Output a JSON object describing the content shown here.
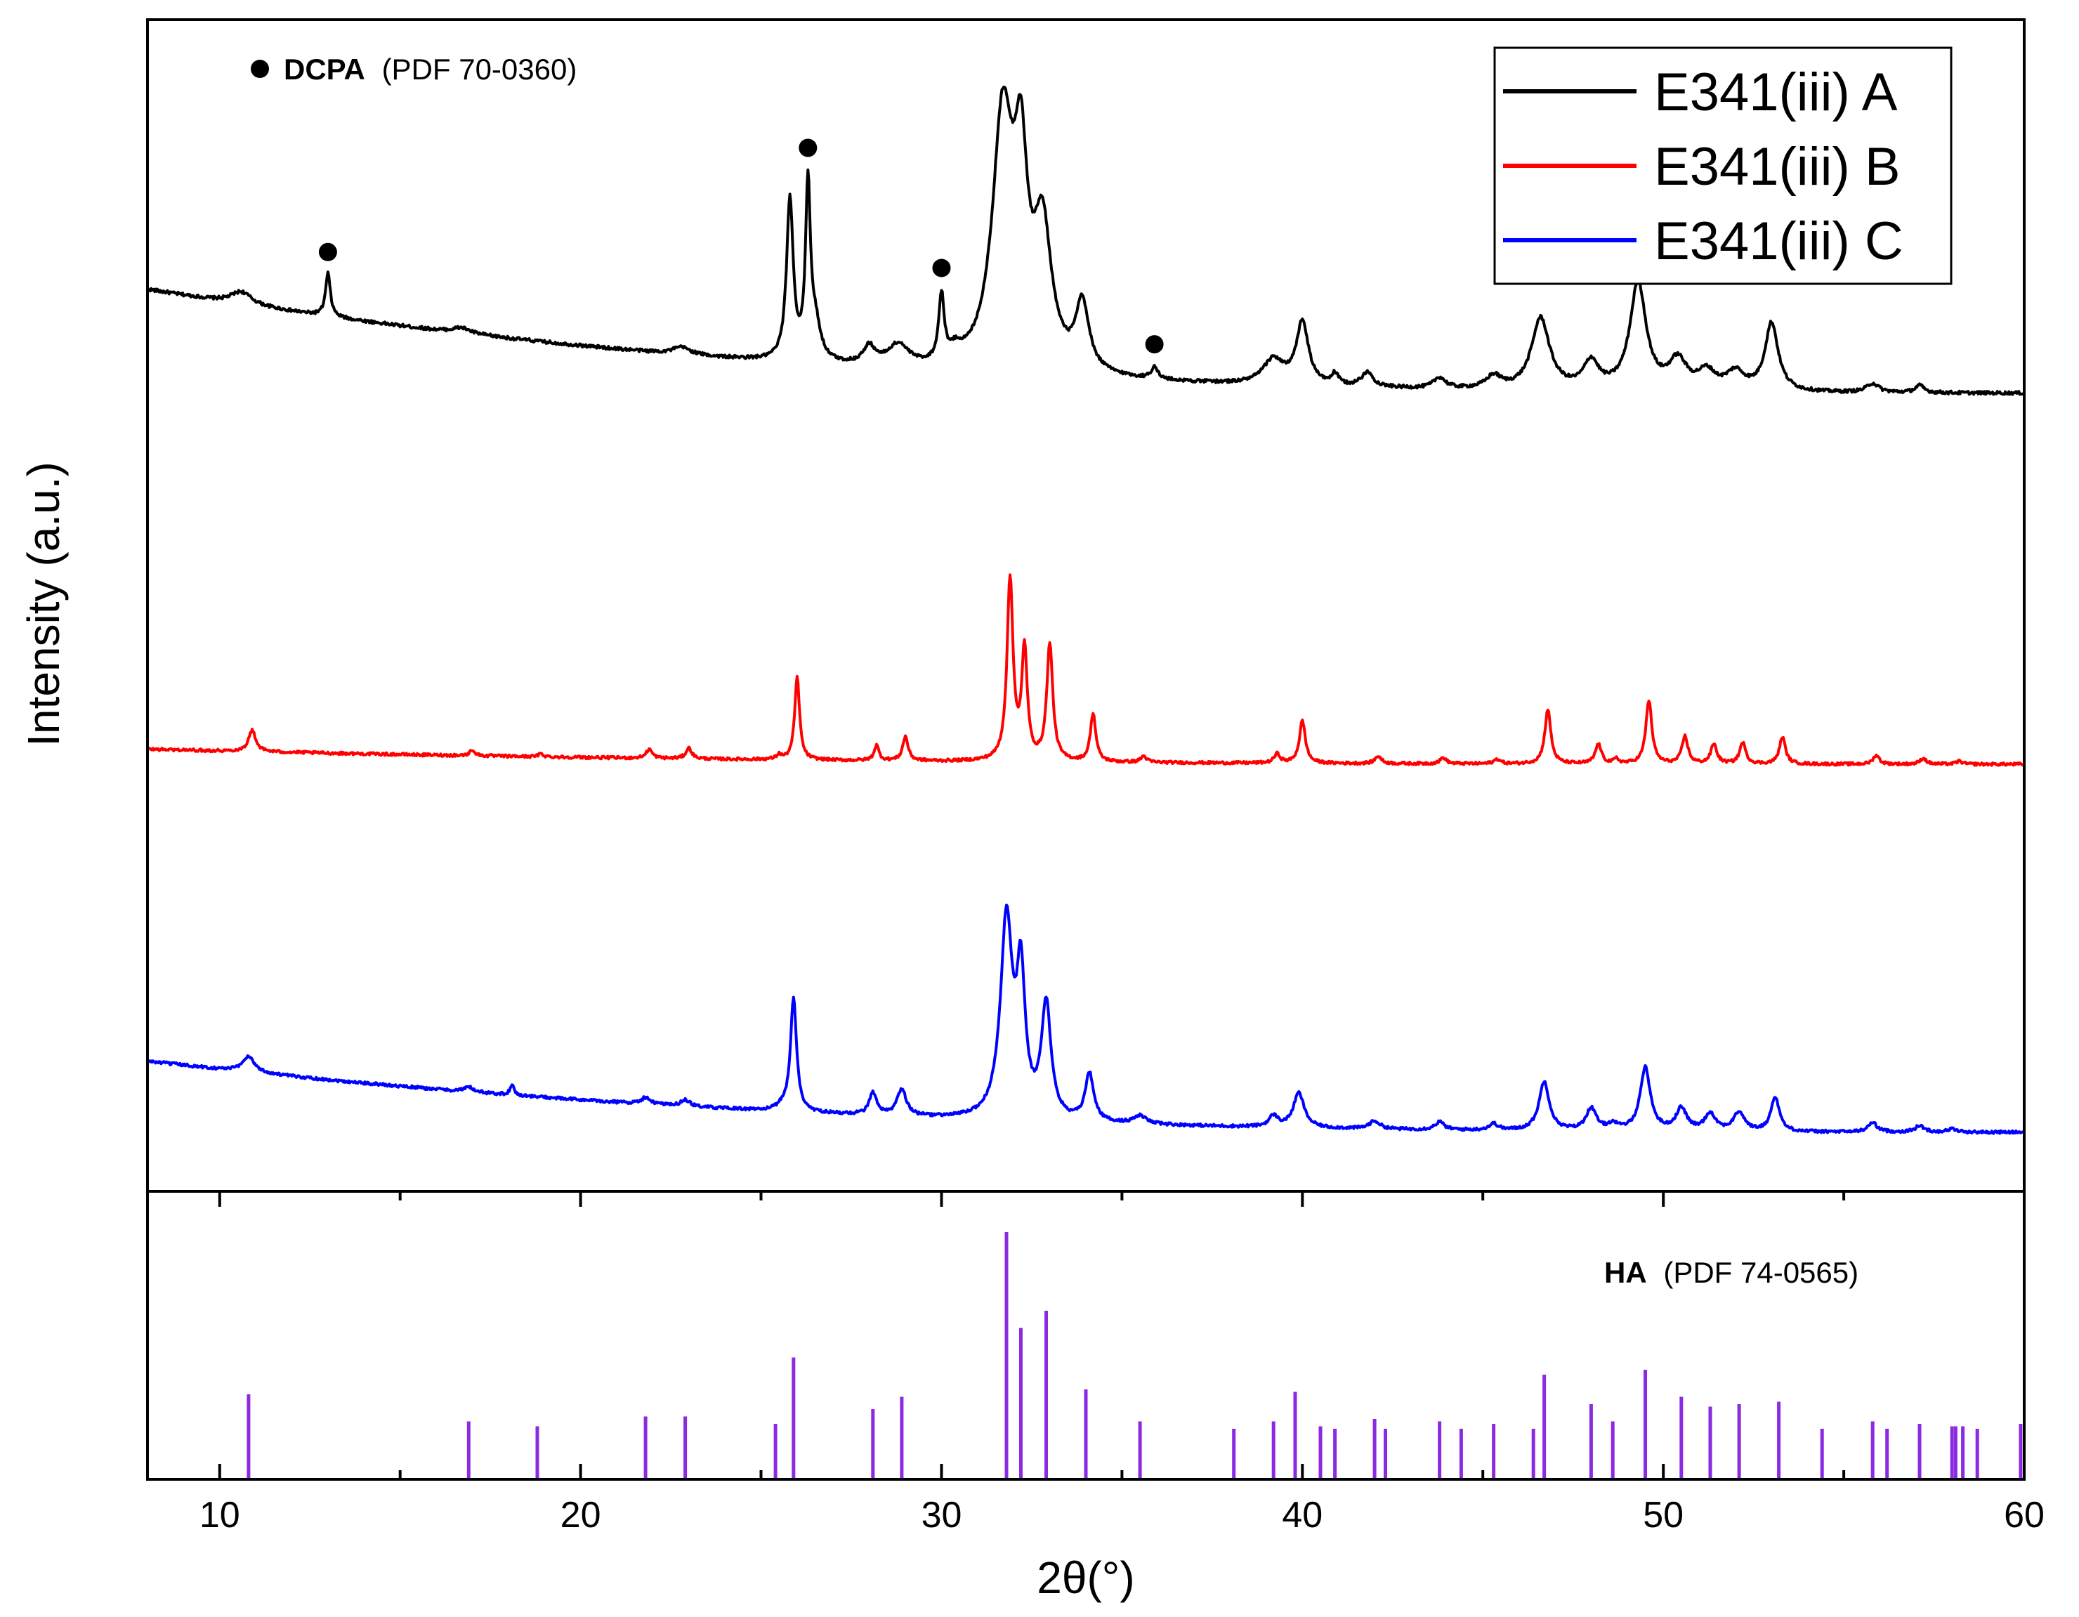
{
  "chart_data": {
    "type": "line",
    "xlabel": "2θ(°)",
    "ylabel": "Intensity (a.u.)",
    "xlim": [
      8,
      60
    ],
    "xticks": [
      10,
      20,
      30,
      40,
      50,
      60
    ],
    "xtick_labels": [
      "10",
      "20",
      "30",
      "40",
      "50",
      "60"
    ],
    "legend_position": "top-right",
    "colors": {
      "A": "#000000",
      "B": "#ff0000",
      "C": "#0000ff",
      "ref": "#8a2be2",
      "marker": "#000000"
    },
    "series": [
      {
        "name": "E341(iii) A",
        "color": "#000000",
        "baseline_start": 0.58,
        "baseline_end": 0.0,
        "peaks": [
          [
            10.6,
            0.07,
            0.35
          ],
          [
            13.0,
            0.24,
            0.08
          ],
          [
            16.7,
            0.03,
            0.3
          ],
          [
            22.8,
            0.04,
            0.3
          ],
          [
            25.8,
            0.9,
            0.11
          ],
          [
            26.3,
            0.95,
            0.08
          ],
          [
            26.5,
            0.2,
            0.18
          ],
          [
            28.0,
            0.1,
            0.2
          ],
          [
            28.8,
            0.12,
            0.35
          ],
          [
            30.0,
            0.37,
            0.09
          ],
          [
            30.4,
            0.06,
            0.2
          ],
          [
            31.7,
            1.4,
            0.35
          ],
          [
            32.2,
            0.95,
            0.22
          ],
          [
            32.8,
            0.75,
            0.3
          ],
          [
            33.9,
            0.37,
            0.22
          ],
          [
            35.9,
            0.07,
            0.1
          ],
          [
            39.2,
            0.14,
            0.35
          ],
          [
            40.0,
            0.35,
            0.2
          ],
          [
            40.9,
            0.06,
            0.12
          ],
          [
            41.8,
            0.08,
            0.2
          ],
          [
            43.8,
            0.06,
            0.2
          ],
          [
            45.3,
            0.07,
            0.25
          ],
          [
            46.6,
            0.4,
            0.3
          ],
          [
            48.0,
            0.15,
            0.25
          ],
          [
            49.3,
            0.6,
            0.27
          ],
          [
            50.4,
            0.16,
            0.3
          ],
          [
            51.2,
            0.1,
            0.3
          ],
          [
            52.0,
            0.1,
            0.3
          ],
          [
            53.0,
            0.38,
            0.22
          ],
          [
            55.8,
            0.05,
            0.2
          ],
          [
            57.1,
            0.04,
            0.15
          ]
        ]
      },
      {
        "name": "E341(iii) B",
        "color": "#ff0000",
        "baseline_start": 0.1,
        "baseline_end": 0.0,
        "peaks": [
          [
            10.9,
            0.14,
            0.12
          ],
          [
            17.0,
            0.04,
            0.08
          ],
          [
            18.9,
            0.02,
            0.08
          ],
          [
            21.9,
            0.06,
            0.1
          ],
          [
            23.0,
            0.07,
            0.1
          ],
          [
            25.5,
            0.03,
            0.08
          ],
          [
            26.0,
            0.55,
            0.08
          ],
          [
            28.2,
            0.1,
            0.08
          ],
          [
            29.0,
            0.16,
            0.09
          ],
          [
            31.9,
            1.2,
            0.1
          ],
          [
            32.3,
            0.73,
            0.09
          ],
          [
            33.0,
            0.77,
            0.1
          ],
          [
            34.2,
            0.32,
            0.09
          ],
          [
            35.6,
            0.04,
            0.1
          ],
          [
            39.3,
            0.06,
            0.1
          ],
          [
            40.0,
            0.28,
            0.1
          ],
          [
            42.1,
            0.05,
            0.1
          ],
          [
            43.9,
            0.04,
            0.1
          ],
          [
            45.4,
            0.03,
            0.1
          ],
          [
            46.8,
            0.36,
            0.1
          ],
          [
            48.2,
            0.13,
            0.1
          ],
          [
            48.7,
            0.03,
            0.08
          ],
          [
            49.6,
            0.42,
            0.1
          ],
          [
            50.6,
            0.18,
            0.1
          ],
          [
            51.4,
            0.13,
            0.1
          ],
          [
            52.2,
            0.14,
            0.1
          ],
          [
            53.3,
            0.18,
            0.1
          ],
          [
            55.9,
            0.06,
            0.1
          ],
          [
            57.2,
            0.04,
            0.1
          ],
          [
            58.2,
            0.02,
            0.1
          ]
        ]
      },
      {
        "name": "E341(iii) C",
        "color": "#0000ff",
        "baseline_start": 0.45,
        "baseline_end": 0.0,
        "peaks": [
          [
            10.8,
            0.1,
            0.2
          ],
          [
            16.9,
            0.03,
            0.15
          ],
          [
            18.1,
            0.06,
            0.07
          ],
          [
            21.8,
            0.04,
            0.15
          ],
          [
            22.9,
            0.04,
            0.15
          ],
          [
            25.6,
            0.03,
            0.15
          ],
          [
            25.9,
            0.72,
            0.1
          ],
          [
            28.1,
            0.14,
            0.12
          ],
          [
            28.9,
            0.17,
            0.15
          ],
          [
            31.8,
            1.25,
            0.2
          ],
          [
            32.2,
            0.85,
            0.14
          ],
          [
            32.9,
            0.72,
            0.16
          ],
          [
            34.1,
            0.3,
            0.14
          ],
          [
            35.5,
            0.05,
            0.2
          ],
          [
            39.2,
            0.07,
            0.15
          ],
          [
            39.9,
            0.22,
            0.18
          ],
          [
            42.0,
            0.05,
            0.18
          ],
          [
            43.8,
            0.05,
            0.15
          ],
          [
            45.3,
            0.04,
            0.15
          ],
          [
            46.7,
            0.31,
            0.17
          ],
          [
            48.0,
            0.14,
            0.17
          ],
          [
            48.6,
            0.04,
            0.15
          ],
          [
            49.5,
            0.4,
            0.17
          ],
          [
            50.5,
            0.14,
            0.18
          ],
          [
            51.3,
            0.11,
            0.18
          ],
          [
            52.1,
            0.12,
            0.18
          ],
          [
            53.1,
            0.22,
            0.14
          ],
          [
            55.8,
            0.06,
            0.15
          ],
          [
            57.1,
            0.04,
            0.15
          ],
          [
            58.0,
            0.02,
            0.15
          ]
        ]
      }
    ],
    "dcpa_markers_2theta": [
      13.0,
      26.3,
      30.0,
      35.9
    ],
    "dcpa_label": {
      "bold": "DCPA",
      "normal": "(PDF 70-0360)"
    },
    "reference": {
      "label_bold": "HA",
      "label_normal": "(PDF 74-0565)",
      "lines": [
        [
          10.8,
          0.34
        ],
        [
          16.9,
          0.23
        ],
        [
          18.8,
          0.21
        ],
        [
          21.8,
          0.25
        ],
        [
          22.9,
          0.25
        ],
        [
          25.4,
          0.22
        ],
        [
          25.9,
          0.49
        ],
        [
          28.1,
          0.28
        ],
        [
          28.9,
          0.33
        ],
        [
          31.8,
          1.0
        ],
        [
          32.2,
          0.61
        ],
        [
          32.9,
          0.68
        ],
        [
          34.0,
          0.36
        ],
        [
          35.5,
          0.23
        ],
        [
          38.1,
          0.2
        ],
        [
          39.2,
          0.23
        ],
        [
          39.8,
          0.35
        ],
        [
          40.5,
          0.21
        ],
        [
          40.9,
          0.2
        ],
        [
          42.0,
          0.24
        ],
        [
          42.3,
          0.2
        ],
        [
          43.8,
          0.23
        ],
        [
          44.4,
          0.2
        ],
        [
          45.3,
          0.22
        ],
        [
          46.4,
          0.2
        ],
        [
          46.7,
          0.42
        ],
        [
          48.0,
          0.3
        ],
        [
          48.6,
          0.23
        ],
        [
          49.5,
          0.44
        ],
        [
          50.5,
          0.33
        ],
        [
          51.3,
          0.29
        ],
        [
          52.1,
          0.3
        ],
        [
          53.2,
          0.31
        ],
        [
          54.4,
          0.2
        ],
        [
          55.8,
          0.23
        ],
        [
          56.2,
          0.2
        ],
        [
          57.1,
          0.22
        ],
        [
          58.0,
          0.21
        ],
        [
          58.1,
          0.21
        ],
        [
          58.3,
          0.21
        ],
        [
          58.7,
          0.2
        ],
        [
          59.9,
          0.22
        ]
      ]
    }
  }
}
